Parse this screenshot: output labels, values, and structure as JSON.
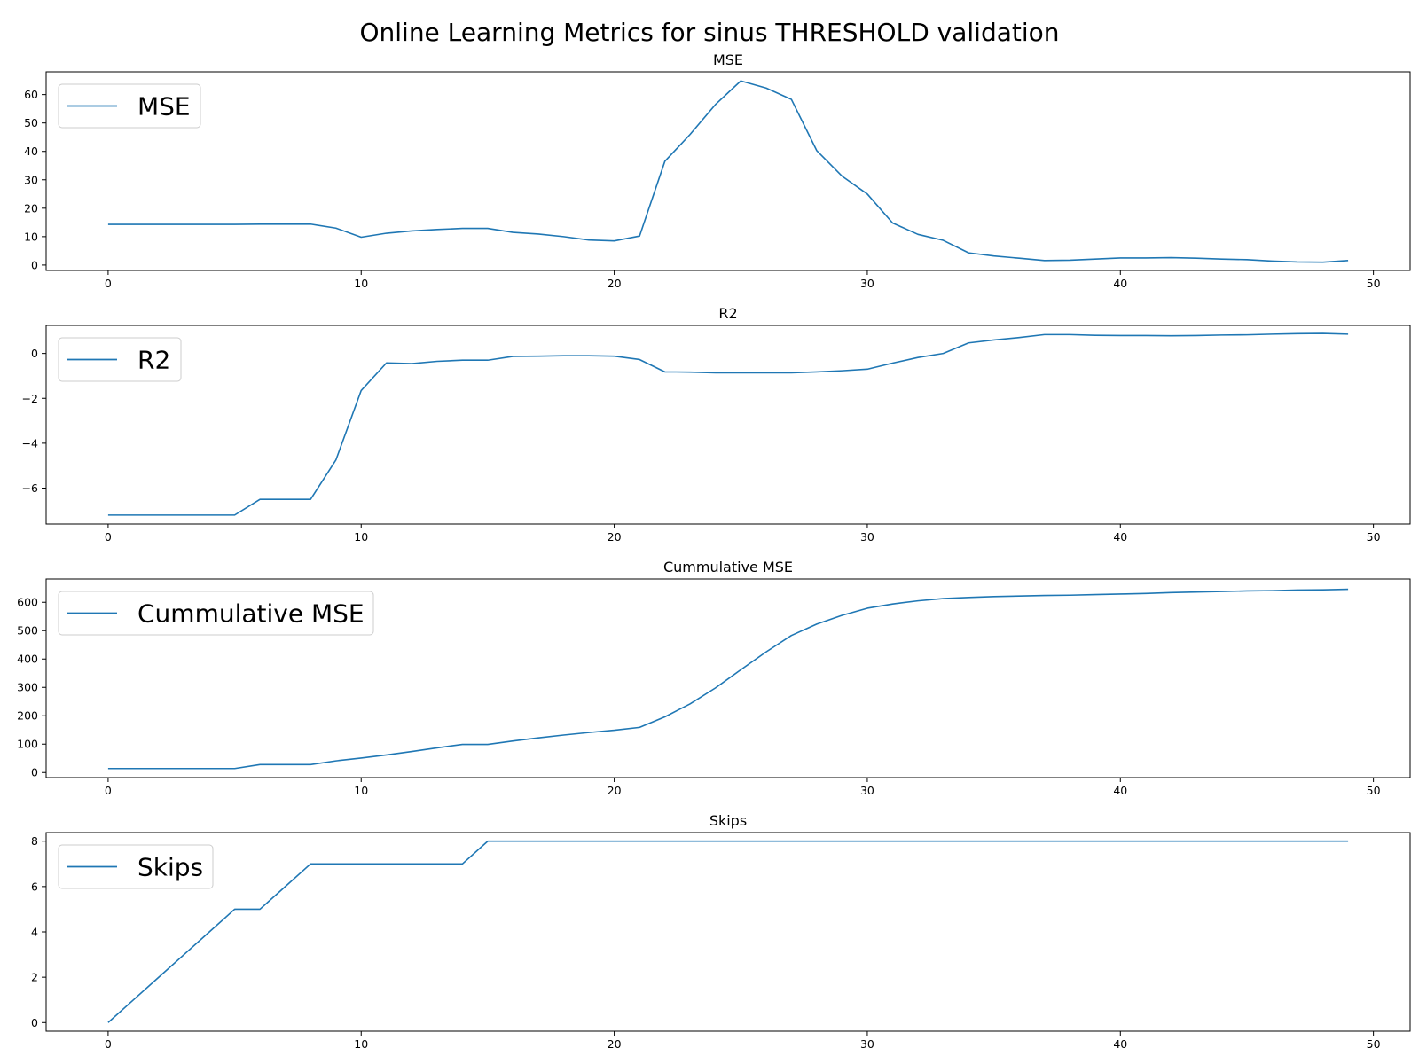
{
  "figure": {
    "suptitle": "Online Learning Metrics for sinus THRESHOLD validation",
    "line_color": "#1f77b4"
  },
  "chart_data": [
    {
      "type": "line",
      "title": "MSE",
      "xlabel": "",
      "ylabel": "",
      "xlim": [
        -2.45,
        51.45
      ],
      "ylim": [
        -1.9,
        68.0
      ],
      "xticks": [
        0,
        10,
        20,
        30,
        40,
        50
      ],
      "yticks": [
        0,
        10,
        20,
        30,
        40,
        50,
        60
      ],
      "ytick_labels": [
        "0",
        "10",
        "20",
        "30",
        "40",
        "50",
        "60"
      ],
      "grid": false,
      "legend_position": "top-left",
      "series": [
        {
          "name": "MSE",
          "x": [
            0,
            1,
            2,
            3,
            4,
            5,
            6,
            7,
            8,
            9,
            10,
            11,
            12,
            13,
            14,
            15,
            16,
            17,
            18,
            19,
            20,
            21,
            22,
            23,
            24,
            25,
            26,
            27,
            28,
            29,
            30,
            31,
            32,
            33,
            34,
            35,
            36,
            37,
            38,
            39,
            40,
            41,
            42,
            43,
            44,
            45,
            46,
            47,
            48,
            49
          ],
          "y": [
            14.3,
            14.3,
            14.3,
            14.3,
            14.3,
            14.3,
            14.4,
            14.4,
            14.4,
            13.0,
            9.8,
            11.2,
            12.0,
            12.5,
            12.9,
            12.9,
            11.5,
            10.9,
            10.0,
            8.8,
            8.5,
            10.2,
            36.5,
            46.0,
            56.5,
            64.8,
            62.3,
            58.3,
            40.3,
            31.3,
            25.0,
            14.8,
            10.8,
            8.7,
            4.3,
            3.2,
            2.4,
            1.6,
            1.7,
            2.1,
            2.5,
            2.5,
            2.6,
            2.4,
            2.1,
            1.9,
            1.4,
            1.1,
            1.0,
            1.6
          ]
        }
      ]
    },
    {
      "type": "line",
      "title": "R2",
      "xlabel": "",
      "ylabel": "",
      "xlim": [
        -2.45,
        51.45
      ],
      "ylim": [
        -7.6,
        1.25
      ],
      "xticks": [
        0,
        10,
        20,
        30,
        40,
        50
      ],
      "yticks": [
        -6,
        -4,
        -2,
        0
      ],
      "ytick_labels": [
        "−6",
        "−4",
        "−2",
        "0"
      ],
      "grid": false,
      "legend_position": "top-left",
      "series": [
        {
          "name": "R2",
          "x": [
            0,
            1,
            2,
            3,
            4,
            5,
            6,
            7,
            8,
            9,
            10,
            11,
            12,
            13,
            14,
            15,
            16,
            17,
            18,
            19,
            20,
            21,
            22,
            23,
            24,
            25,
            26,
            27,
            28,
            29,
            30,
            31,
            32,
            33,
            34,
            35,
            36,
            37,
            38,
            39,
            40,
            41,
            42,
            43,
            44,
            45,
            46,
            47,
            48,
            49
          ],
          "y": [
            -7.2,
            -7.2,
            -7.2,
            -7.2,
            -7.2,
            -7.2,
            -6.5,
            -6.5,
            -6.5,
            -4.75,
            -1.65,
            -0.42,
            -0.45,
            -0.35,
            -0.3,
            -0.3,
            -0.13,
            -0.12,
            -0.1,
            -0.1,
            -0.12,
            -0.27,
            -0.82,
            -0.83,
            -0.86,
            -0.86,
            -0.86,
            -0.86,
            -0.82,
            -0.77,
            -0.7,
            -0.43,
            -0.18,
            0.0,
            0.47,
            0.6,
            0.71,
            0.84,
            0.84,
            0.81,
            0.8,
            0.8,
            0.79,
            0.8,
            0.82,
            0.83,
            0.86,
            0.88,
            0.89,
            0.86
          ]
        }
      ]
    },
    {
      "type": "line",
      "title": "Cummulative MSE",
      "xlabel": "",
      "ylabel": "",
      "xlim": [
        -2.45,
        51.45
      ],
      "ylim": [
        -18.0,
        682.0
      ],
      "xticks": [
        0,
        10,
        20,
        30,
        40,
        50
      ],
      "yticks": [
        0,
        100,
        200,
        300,
        400,
        500,
        600
      ],
      "ytick_labels": [
        "0",
        "100",
        "200",
        "300",
        "400",
        "500",
        "600"
      ],
      "grid": false,
      "legend_position": "top-left",
      "series": [
        {
          "name": "Cummulative MSE",
          "x": [
            0,
            1,
            2,
            3,
            4,
            5,
            6,
            7,
            8,
            9,
            10,
            11,
            12,
            13,
            14,
            15,
            16,
            17,
            18,
            19,
            20,
            21,
            22,
            23,
            24,
            25,
            26,
            27,
            28,
            29,
            30,
            31,
            32,
            33,
            34,
            35,
            36,
            37,
            38,
            39,
            40,
            41,
            42,
            43,
            44,
            45,
            46,
            47,
            48,
            49
          ],
          "y": [
            14,
            14,
            14,
            14,
            14,
            14,
            28,
            28,
            28,
            41,
            51,
            62,
            74,
            87,
            99,
            99,
            111,
            122,
            132,
            141,
            149,
            159,
            196,
            242,
            298,
            362,
            425,
            483,
            523,
            554,
            579,
            594,
            605,
            613,
            617,
            620,
            622,
            624,
            625,
            627,
            629,
            631,
            634,
            636,
            638,
            640,
            641,
            643,
            644,
            646
          ]
        }
      ]
    },
    {
      "type": "line",
      "title": "Skips",
      "xlabel": "",
      "ylabel": "",
      "xlim": [
        -2.45,
        51.45
      ],
      "ylim": [
        -0.38,
        8.38
      ],
      "xticks": [
        0,
        10,
        20,
        30,
        40,
        50
      ],
      "yticks": [
        0,
        2,
        4,
        6,
        8
      ],
      "ytick_labels": [
        "0",
        "2",
        "4",
        "6",
        "8"
      ],
      "grid": false,
      "legend_position": "top-left",
      "series": [
        {
          "name": "Skips",
          "x": [
            0,
            1,
            2,
            3,
            4,
            5,
            6,
            7,
            8,
            9,
            10,
            11,
            12,
            13,
            14,
            15,
            16,
            17,
            18,
            19,
            20,
            21,
            22,
            23,
            24,
            25,
            26,
            27,
            28,
            29,
            30,
            31,
            32,
            33,
            34,
            35,
            36,
            37,
            38,
            39,
            40,
            41,
            42,
            43,
            44,
            45,
            46,
            47,
            48,
            49
          ],
          "y": [
            0,
            1,
            2,
            3,
            4,
            5,
            5,
            6,
            7,
            7,
            7,
            7,
            7,
            7,
            7,
            8,
            8,
            8,
            8,
            8,
            8,
            8,
            8,
            8,
            8,
            8,
            8,
            8,
            8,
            8,
            8,
            8,
            8,
            8,
            8,
            8,
            8,
            8,
            8,
            8,
            8,
            8,
            8,
            8,
            8,
            8,
            8,
            8,
            8,
            8
          ]
        }
      ]
    }
  ]
}
